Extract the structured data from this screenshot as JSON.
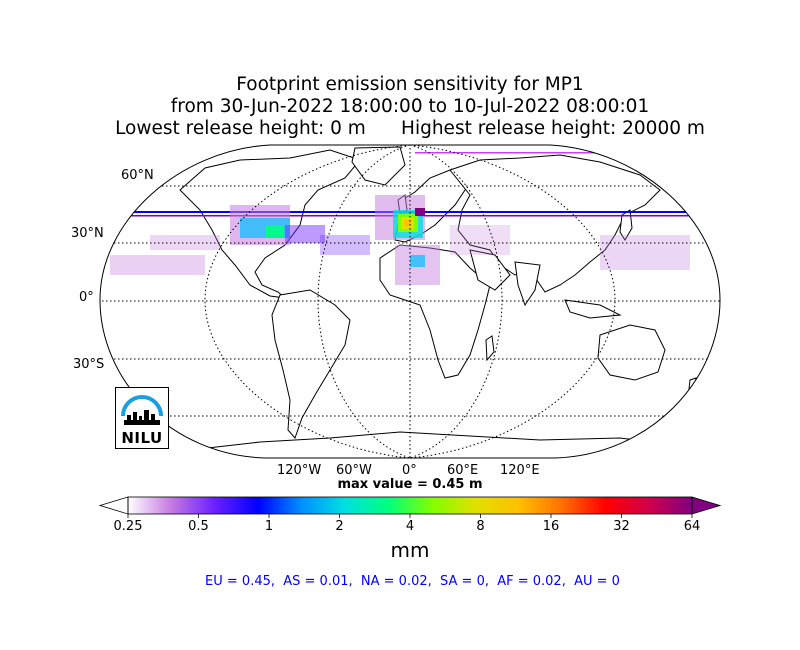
{
  "title": {
    "line1": "Footprint emission sensitivity for MP1",
    "line2": "from 30-Jun-2022 18:00:00 to 10-Jul-2022 08:00:01",
    "line3": "Lowest release height: 0 m      Highest release height: 20000 m"
  },
  "map": {
    "projection": "Robinson",
    "lat_labels": [
      "60°N",
      "30°N",
      "0°",
      "30°S"
    ],
    "lon_labels": [
      "120°W",
      "60°W",
      "0°",
      "60°E",
      "120°E"
    ],
    "gridlines": true,
    "max_value_label": "max value = 0.45 m"
  },
  "logo": {
    "text": "NILU"
  },
  "colorbar": {
    "ticks": [
      "0.25",
      "0.5",
      "1",
      "2",
      "4",
      "8",
      "16",
      "32",
      "64"
    ],
    "unit": "mm",
    "colors": [
      "#ffffff",
      "#c47ae0",
      "#6a20ff",
      "#0000ff",
      "#0090ff",
      "#00e0e0",
      "#00ff80",
      "#80ff00",
      "#e0e000",
      "#ffc000",
      "#ff7000",
      "#ff0000",
      "#d0004a",
      "#800080"
    ]
  },
  "summary": "EU = 0.45,  AS = 0.01,  NA = 0.02,  SA = 0,  AF = 0.02,  AU = 0"
}
